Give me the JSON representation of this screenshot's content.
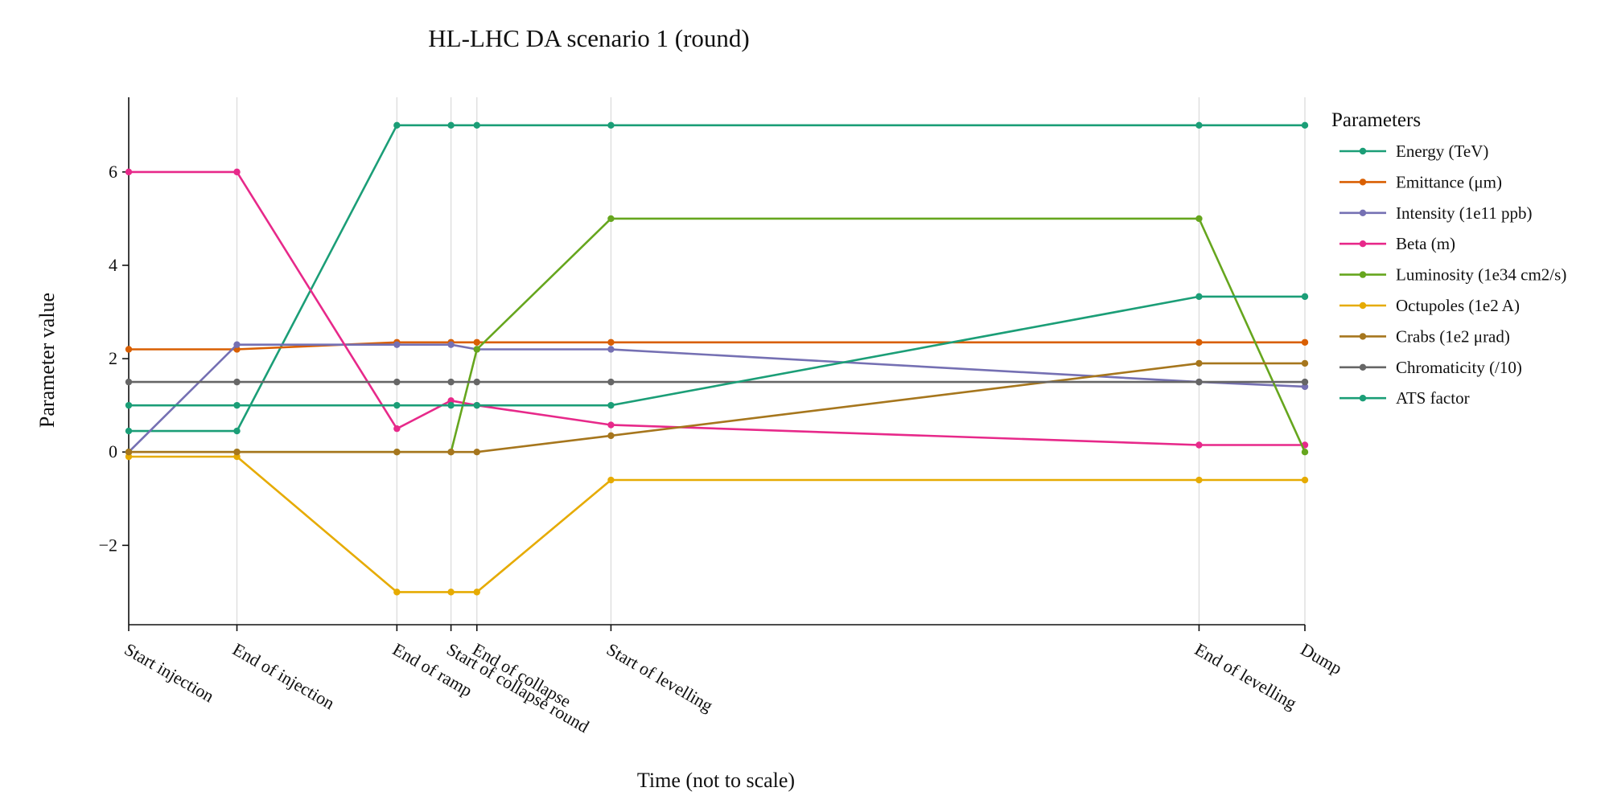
{
  "chart_data": {
    "type": "line",
    "title": "HL-LHC DA scenario 1 (round)",
    "xlabel": "Time (not to scale)",
    "ylabel": "Parameter value",
    "ylim": [
      -3.7,
      7.6
    ],
    "yticks": [
      -2,
      0,
      2,
      4,
      6
    ],
    "grid": "vertical lines at time points",
    "categories": [
      "Start injection",
      "End of injection",
      "End of ramp",
      "Start of collapse round",
      "End of collapse",
      "Start of levelling",
      "End of levelling",
      "Dump"
    ],
    "x_positions": [
      0,
      0.092,
      0.228,
      0.274,
      0.296,
      0.41,
      0.91,
      1.0
    ],
    "legend": {
      "title": "Parameters",
      "placement": "outside-right"
    },
    "series": [
      {
        "name": "Energy (TeV)",
        "color": "#1b9e77",
        "values": [
          0.45,
          0.45,
          7.0,
          7.0,
          7.0,
          7.0,
          7.0,
          7.0
        ]
      },
      {
        "name": "Emittance (μm)",
        "color": "#d95f02",
        "values": [
          2.2,
          2.2,
          2.35,
          2.35,
          2.35,
          2.35,
          2.35,
          2.35
        ]
      },
      {
        "name": "Intensity (1e11 ppb)",
        "color": "#7570b3",
        "values": [
          0.0,
          2.3,
          2.3,
          2.3,
          2.2,
          2.2,
          1.5,
          1.4
        ]
      },
      {
        "name": "Beta (m)",
        "color": "#e7298a",
        "values": [
          6.0,
          6.0,
          0.5,
          1.1,
          1.0,
          0.58,
          0.15,
          0.15
        ]
      },
      {
        "name": "Luminosity (1e34 cm2/s)",
        "color": "#66a61e",
        "values": [
          0.0,
          0.0,
          0.0,
          0.0,
          2.2,
          5.0,
          5.0,
          0.0
        ]
      },
      {
        "name": "Octupoles (1e2 A)",
        "color": "#e6ab02",
        "values": [
          -0.1,
          -0.1,
          -3.0,
          -3.0,
          -3.0,
          -0.6,
          -0.6,
          -0.6
        ]
      },
      {
        "name": "Crabs (1e2 μrad)",
        "color": "#a6761d",
        "values": [
          0.0,
          0.0,
          0.0,
          0.0,
          0.0,
          0.35,
          1.9,
          1.9
        ]
      },
      {
        "name": "Chromaticity (/10)",
        "color": "#666666",
        "values": [
          1.5,
          1.5,
          1.5,
          1.5,
          1.5,
          1.5,
          1.5,
          1.5
        ]
      },
      {
        "name": "ATS factor",
        "color": "#1b9e77",
        "values": [
          1.0,
          1.0,
          1.0,
          1.0,
          1.0,
          1.0,
          3.33,
          3.33
        ]
      }
    ]
  }
}
